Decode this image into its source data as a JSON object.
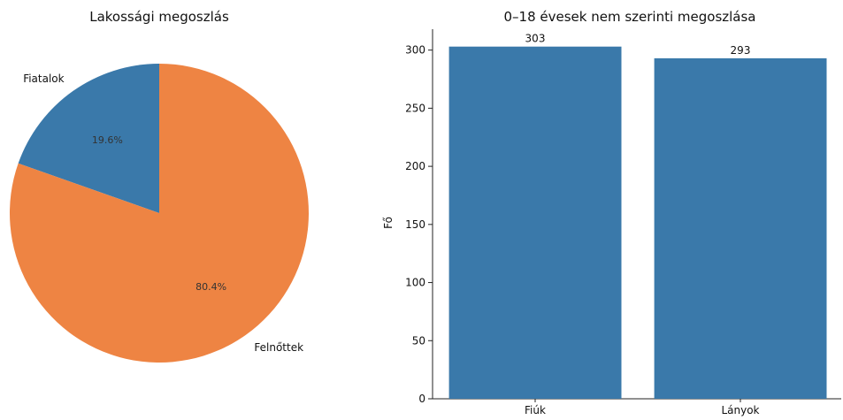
{
  "chart_data": [
    {
      "type": "pie",
      "title": "Lakossági megoszlás",
      "slices": [
        {
          "label": "Fiatalok",
          "value": 19.6,
          "pct_label": "19.6%",
          "color": "#3a79aa"
        },
        {
          "label": "Felnőttek",
          "value": 80.4,
          "pct_label": "80.4%",
          "color": "#ee8443"
        }
      ],
      "start_angle_deg": 90,
      "direction": "counterclockwise"
    },
    {
      "type": "bar",
      "title": "0–18 évesek nem szerinti megoszlása",
      "categories": [
        "Fiúk",
        "Lányok"
      ],
      "values": [
        303,
        293
      ],
      "value_labels": [
        "303",
        "293"
      ],
      "ylabel": "Fő",
      "xlabel": "",
      "ylim": [
        0,
        318
      ],
      "yticks": [
        0,
        50,
        100,
        150,
        200,
        250,
        300
      ],
      "bar_color": "#3a79aa",
      "grid": false
    }
  ]
}
